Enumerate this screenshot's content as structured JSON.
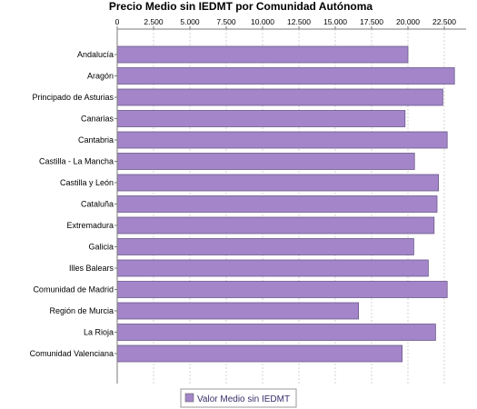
{
  "chart_data": {
    "type": "bar",
    "orientation": "horizontal",
    "title": "Precio Medio sin IEDMT por Comunidad Autónoma",
    "xlabel": "",
    "ylabel": "",
    "xaxis_position": "top",
    "xlim": [
      0,
      24000
    ],
    "x_ticks": [
      0,
      2500,
      5000,
      7500,
      10000,
      12500,
      15000,
      17500,
      20000,
      22500
    ],
    "x_tick_labels": [
      "0",
      "2.500",
      "5.000",
      "7.500",
      "10.000",
      "12.500",
      "15.000",
      "17.500",
      "20.000",
      "22.500"
    ],
    "grid": true,
    "legend_position": "bottom",
    "categories": [
      "Andalucía",
      "Aragón",
      "Principado de Asturias",
      "Canarias",
      "Cantabria",
      "Castilla - La Mancha",
      "Castilla y León",
      "Cataluña",
      "Extremadura",
      "Galicia",
      "Illes Balears",
      "Comunidad de Madrid",
      "Región de Murcia",
      "La Rioja",
      "Comunidad Valenciana"
    ],
    "series": [
      {
        "name": "Valor Medio sin IEDMT",
        "color": "#a485c9",
        "values": [
          20000,
          23200,
          22400,
          19800,
          22700,
          20450,
          22100,
          22000,
          21800,
          20400,
          21400,
          22700,
          16600,
          21900,
          19600
        ]
      }
    ]
  }
}
